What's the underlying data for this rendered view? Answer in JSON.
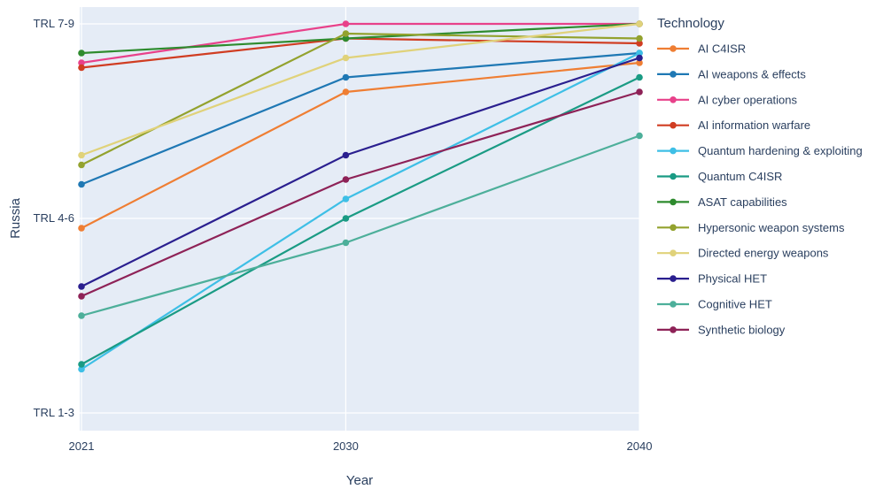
{
  "chart_data": {
    "type": "line",
    "xlabel": "Year",
    "ylabel": "Russia",
    "x": [
      2021,
      2030,
      2040
    ],
    "xlim": [
      2021,
      2040
    ],
    "ylim": [
      1,
      9
    ],
    "y_ticks": [
      {
        "value": 1,
        "label": "TRL 1-3"
      },
      {
        "value": 5,
        "label": "TRL 4-6"
      },
      {
        "value": 9,
        "label": "TRL 7-9"
      }
    ],
    "grid": true,
    "legend_title": "Technology",
    "legend_position": "right",
    "series": [
      {
        "name": "AI C4ISR",
        "color": "#ef7e33",
        "values": [
          4.8,
          7.6,
          8.2
        ]
      },
      {
        "name": "AI weapons & effects",
        "color": "#1f78b4",
        "values": [
          5.7,
          7.9,
          8.4
        ]
      },
      {
        "name": "AI cyber operations",
        "color": "#e8418a",
        "values": [
          8.2,
          9.0,
          9.0
        ]
      },
      {
        "name": "AI information warfare",
        "color": "#d03d22",
        "values": [
          8.1,
          8.7,
          8.6
        ]
      },
      {
        "name": "Quantum hardening & exploiting",
        "color": "#3ebfe6",
        "values": [
          1.9,
          5.4,
          8.4
        ]
      },
      {
        "name": "Quantum C4ISR",
        "color": "#1a9b84",
        "values": [
          2.0,
          5.0,
          7.9
        ]
      },
      {
        "name": "ASAT capabilities",
        "color": "#2e8b2e",
        "values": [
          8.4,
          8.7,
          9.0
        ]
      },
      {
        "name": "Hypersonic weapon systems",
        "color": "#93a22e",
        "values": [
          6.1,
          8.8,
          8.7
        ]
      },
      {
        "name": "Directed energy weapons",
        "color": "#e0d27a",
        "values": [
          6.3,
          8.3,
          9.0
        ]
      },
      {
        "name": "Physical HET",
        "color": "#2a1f8f",
        "values": [
          3.6,
          6.3,
          8.3
        ]
      },
      {
        "name": "Cognitive HET",
        "color": "#4daf9a",
        "values": [
          3.0,
          4.5,
          6.7
        ]
      },
      {
        "name": "Synthetic biology",
        "color": "#8e2257",
        "values": [
          3.4,
          5.8,
          7.6
        ]
      }
    ]
  }
}
